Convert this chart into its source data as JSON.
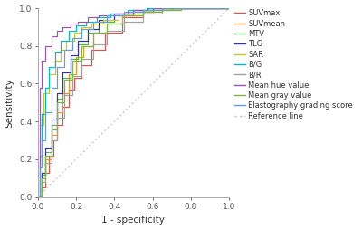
{
  "title": "",
  "xlabel": "1 - specificity",
  "ylabel": "Sensitivity",
  "xlim": [
    0.0,
    1.0
  ],
  "ylim": [
    0.0,
    1.0
  ],
  "xticks": [
    0.0,
    0.2,
    0.4,
    0.6,
    0.8,
    1.0
  ],
  "yticks": [
    0.0,
    0.2,
    0.4,
    0.6,
    0.8,
    1.0
  ],
  "background_color": "#ffffff",
  "curves": {
    "SUVmax": {
      "color": "#e05050",
      "points_x": [
        0.0,
        0.02,
        0.04,
        0.06,
        0.08,
        0.1,
        0.13,
        0.16,
        0.19,
        0.23,
        0.28,
        0.35,
        0.44,
        0.55,
        0.65,
        0.75,
        1.0
      ],
      "points_y": [
        0.0,
        0.05,
        0.13,
        0.22,
        0.3,
        0.38,
        0.48,
        0.57,
        0.63,
        0.7,
        0.78,
        0.87,
        0.95,
        0.98,
        1.0,
        1.0,
        1.0
      ]
    },
    "SUVmean": {
      "color": "#f0922b",
      "points_x": [
        0.0,
        0.02,
        0.04,
        0.07,
        0.1,
        0.13,
        0.16,
        0.2,
        0.24,
        0.29,
        0.36,
        0.44,
        0.55,
        0.65,
        0.75,
        1.0
      ],
      "points_y": [
        0.0,
        0.1,
        0.2,
        0.33,
        0.45,
        0.55,
        0.65,
        0.74,
        0.8,
        0.87,
        0.92,
        0.96,
        0.99,
        1.0,
        1.0,
        1.0
      ]
    },
    "MTV": {
      "color": "#4db84d",
      "points_x": [
        0.0,
        0.02,
        0.04,
        0.07,
        0.1,
        0.13,
        0.17,
        0.21,
        0.26,
        0.32,
        0.4,
        0.5,
        0.6,
        0.7,
        1.0
      ],
      "points_y": [
        0.0,
        0.12,
        0.24,
        0.38,
        0.52,
        0.63,
        0.73,
        0.81,
        0.87,
        0.93,
        0.96,
        0.98,
        0.99,
        1.0,
        1.0
      ]
    },
    "TLG": {
      "color": "#3333aa",
      "points_x": [
        0.0,
        0.02,
        0.04,
        0.07,
        0.1,
        0.13,
        0.17,
        0.21,
        0.26,
        0.32,
        0.4,
        0.5,
        0.6,
        0.7,
        1.0
      ],
      "points_y": [
        0.0,
        0.13,
        0.26,
        0.41,
        0.55,
        0.66,
        0.75,
        0.83,
        0.89,
        0.94,
        0.97,
        0.99,
        1.0,
        1.0,
        1.0
      ]
    },
    "SAR": {
      "color": "#c8c820",
      "points_x": [
        0.0,
        0.01,
        0.03,
        0.06,
        0.09,
        0.12,
        0.15,
        0.19,
        0.23,
        0.28,
        0.34,
        0.42,
        0.52,
        0.62,
        1.0
      ],
      "points_y": [
        0.0,
        0.38,
        0.55,
        0.65,
        0.72,
        0.78,
        0.83,
        0.87,
        0.9,
        0.92,
        0.94,
        0.96,
        0.98,
        1.0,
        1.0
      ]
    },
    "BG": {
      "color": "#00b8cc",
      "points_x": [
        0.0,
        0.01,
        0.02,
        0.04,
        0.06,
        0.09,
        0.12,
        0.16,
        0.2,
        0.25,
        0.31,
        0.38,
        0.47,
        0.57,
        1.0
      ],
      "points_y": [
        0.0,
        0.22,
        0.44,
        0.58,
        0.69,
        0.77,
        0.83,
        0.88,
        0.91,
        0.93,
        0.95,
        0.97,
        0.99,
        1.0,
        1.0
      ]
    },
    "BR": {
      "color": "#a0a0a0",
      "points_x": [
        0.0,
        0.02,
        0.04,
        0.07,
        0.1,
        0.14,
        0.18,
        0.23,
        0.29,
        0.36,
        0.45,
        0.55,
        0.65,
        0.75,
        1.0
      ],
      "points_y": [
        0.0,
        0.08,
        0.18,
        0.3,
        0.42,
        0.54,
        0.64,
        0.73,
        0.81,
        0.88,
        0.93,
        0.97,
        0.99,
        1.0,
        1.0
      ]
    },
    "MeanHue": {
      "color": "#9c55b0",
      "points_x": [
        0.0,
        0.01,
        0.02,
        0.04,
        0.07,
        0.1,
        0.13,
        0.17,
        0.21,
        0.26,
        0.32,
        0.4,
        0.5,
        0.6,
        1.0
      ],
      "points_y": [
        0.0,
        0.58,
        0.72,
        0.8,
        0.85,
        0.88,
        0.9,
        0.92,
        0.93,
        0.95,
        0.96,
        0.97,
        0.99,
        1.0,
        1.0
      ]
    },
    "MeanGray": {
      "color": "#7ab840",
      "points_x": [
        0.0,
        0.02,
        0.04,
        0.07,
        0.1,
        0.14,
        0.18,
        0.23,
        0.29,
        0.36,
        0.45,
        0.55,
        0.65,
        0.75,
        1.0
      ],
      "points_y": [
        0.0,
        0.1,
        0.22,
        0.36,
        0.5,
        0.62,
        0.72,
        0.8,
        0.87,
        0.92,
        0.96,
        0.98,
        0.99,
        1.0,
        1.0
      ]
    },
    "Elastography": {
      "color": "#6699dd",
      "points_x": [
        0.0,
        0.01,
        0.02,
        0.04,
        0.07,
        0.1,
        0.14,
        0.18,
        0.23,
        0.29,
        0.36,
        0.45,
        0.55,
        0.65,
        1.0
      ],
      "points_y": [
        0.0,
        0.16,
        0.3,
        0.45,
        0.58,
        0.69,
        0.78,
        0.84,
        0.89,
        0.93,
        0.96,
        0.98,
        0.99,
        1.0,
        1.0
      ]
    }
  },
  "legend_labels": [
    "SUVmax",
    "SUVmean",
    "MTV",
    "TLG",
    "SAR",
    "B/G",
    "B/R",
    "Mean hue value",
    "Mean gray value",
    "Elastography grading score",
    "Reference line"
  ],
  "legend_colors": [
    "#e05050",
    "#f0922b",
    "#4db84d",
    "#3333aa",
    "#c8c820",
    "#00b8cc",
    "#a0a0a0",
    "#9c55b0",
    "#7ab840",
    "#6699dd",
    "#bbbbbb"
  ],
  "tick_fontsize": 6.5,
  "label_fontsize": 7.5,
  "legend_fontsize": 6.0,
  "axis_color": "#aaaaaa",
  "figsize": [
    4.0,
    2.54
  ],
  "dpi": 100
}
